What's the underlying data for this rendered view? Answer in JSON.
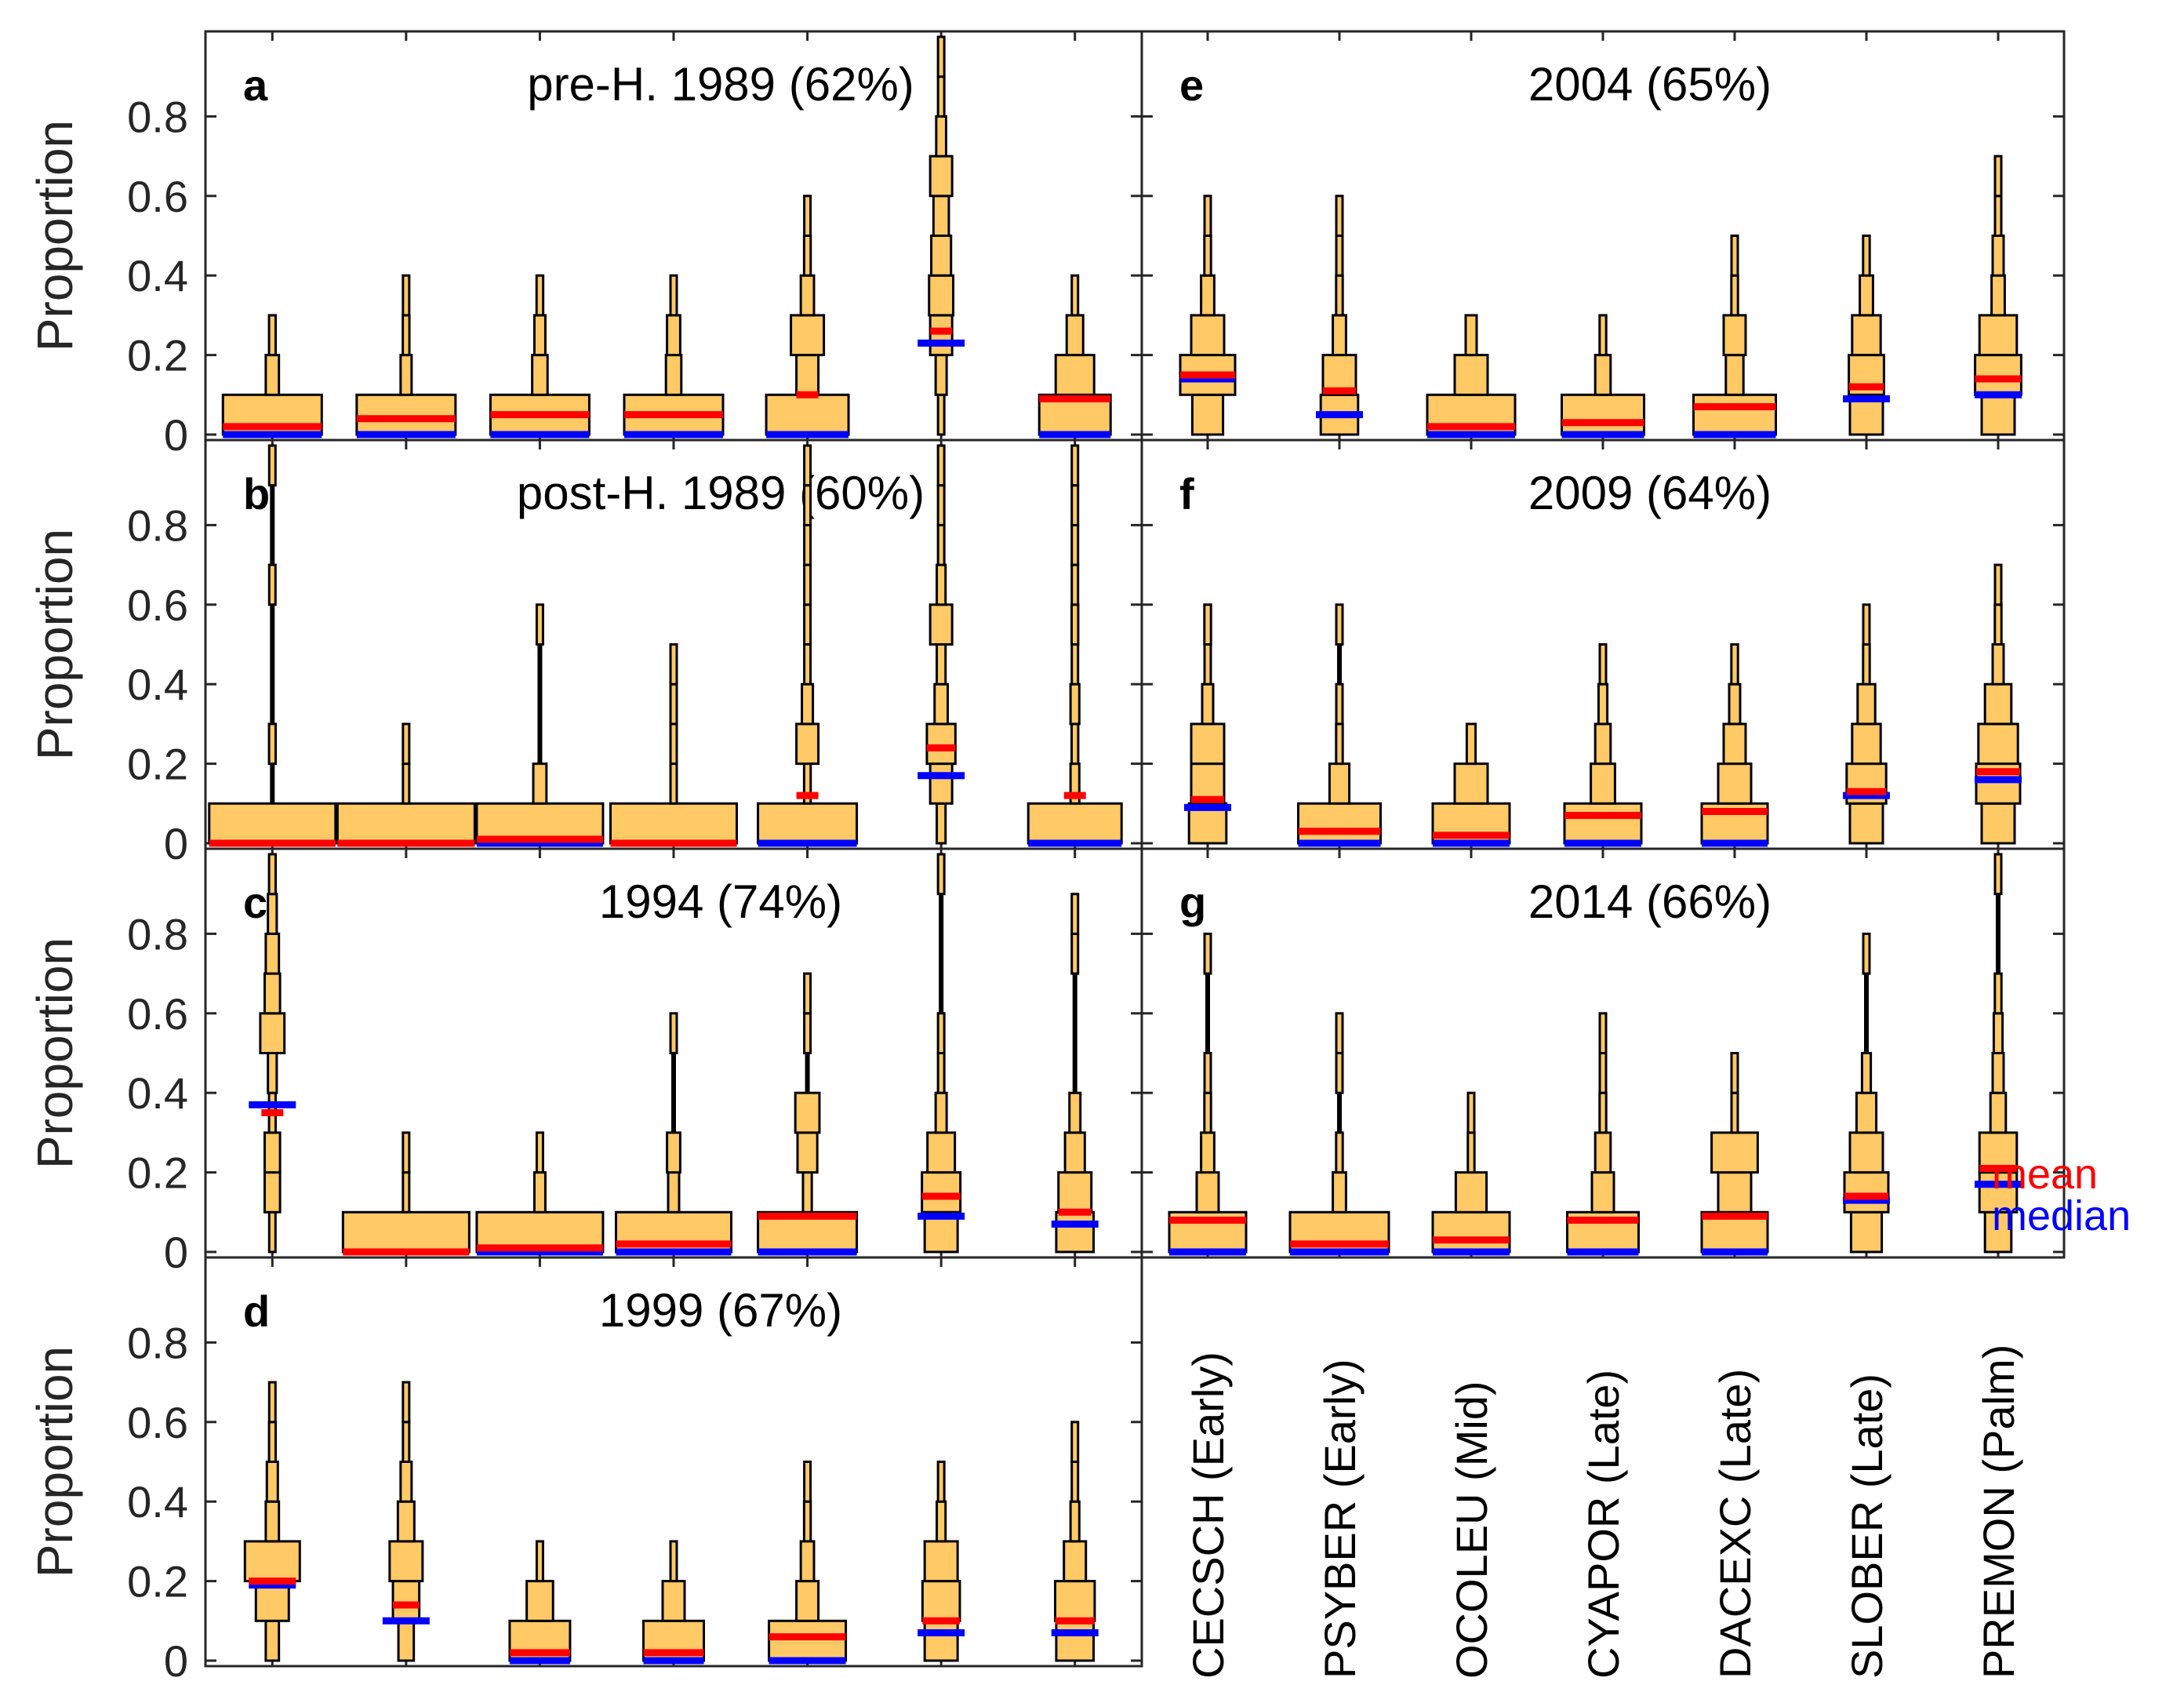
{
  "chart_data": {
    "type": "violin-histogram",
    "ylabel": "Proportion",
    "ylim": [
      0,
      1
    ],
    "yticks": [
      0,
      0.2,
      0.4,
      0.6,
      0.8
    ],
    "ytick_labels": [
      "0",
      "0.2",
      "0.4",
      "0.6",
      "0.8"
    ],
    "categories": [
      "CECSCH (Early)",
      "PSYBER (Early)",
      "OCOLEU (Mid)",
      "CYAPOR (Late)",
      "DACEXC (Late)",
      "SLOBER (Late)",
      "PREMON (Palm)"
    ],
    "legend": [
      {
        "label": "mean",
        "color": "#ff0000"
      },
      {
        "label": "median",
        "color": "#0000ff"
      }
    ],
    "colors": {
      "fill": "#ffc966",
      "mean": "#ff0000",
      "median": "#0000ff",
      "outline": "#000000"
    },
    "bins": [
      0,
      0.1,
      0.2,
      0.3,
      0.4,
      0.5,
      0.6,
      0.7,
      0.8,
      0.9
    ],
    "panels": [
      {
        "letter": "a",
        "title": "pre-H. 1989 (62%)",
        "series": [
          {
            "widths": [
              0.9,
              0.12,
              0.06,
              0,
              0,
              0,
              0,
              0,
              0,
              0
            ],
            "mean": 0.02,
            "median": 0
          },
          {
            "widths": [
              0.9,
              0.1,
              0.06,
              0.03,
              0,
              0,
              0,
              0,
              0,
              0
            ],
            "mean": 0.04,
            "median": 0
          },
          {
            "widths": [
              0.9,
              0.14,
              0.1,
              0.06,
              0,
              0,
              0,
              0,
              0,
              0
            ],
            "mean": 0.05,
            "median": 0
          },
          {
            "widths": [
              0.9,
              0.14,
              0.12,
              0.05,
              0,
              0,
              0,
              0,
              0,
              0
            ],
            "mean": 0.05,
            "median": 0
          },
          {
            "widths": [
              0.75,
              0.2,
              0.3,
              0.12,
              0.06,
              0.05,
              0,
              0,
              0,
              0
            ],
            "mean": 0.1,
            "median": 0
          },
          {
            "widths": [
              0.05,
              0.1,
              0.2,
              0.22,
              0.18,
              0.14,
              0.2,
              0.09,
              0.05,
              0.04
            ],
            "mean": 0.26,
            "median": 0.23
          },
          {
            "widths": [
              0.65,
              0.35,
              0.15,
              0.05,
              0,
              0,
              0,
              0,
              0,
              0
            ],
            "mean": 0.09,
            "median": 0
          }
        ]
      },
      {
        "letter": "b",
        "title": "post-H. 1989 (60%)",
        "series": [
          {
            "widths": [
              1.15,
              0,
              0.06,
              0,
              0,
              0,
              0.04,
              0,
              0,
              0.02
            ],
            "mean": 0,
            "median": 0
          },
          {
            "widths": [
              1.25,
              0.04,
              0.04,
              0,
              0,
              0,
              0,
              0,
              0,
              0
            ],
            "mean": 0,
            "median": 0
          },
          {
            "widths": [
              1.15,
              0.12,
              0,
              0,
              0,
              0.04,
              0,
              0,
              0,
              0
            ],
            "mean": 0.01,
            "median": 0
          },
          {
            "widths": [
              1.15,
              0.04,
              0.03,
              0.03,
              0.03,
              0,
              0,
              0,
              0,
              0
            ],
            "mean": 0,
            "median": 0
          },
          {
            "widths": [
              0.9,
              0.06,
              0.2,
              0.1,
              0.05,
              0.04,
              0.04,
              0.04,
              0.02,
              0.02
            ],
            "mean": 0.12,
            "median": 0
          },
          {
            "widths": [
              0.08,
              0.2,
              0.26,
              0.12,
              0.08,
              0.2,
              0.08,
              0.04,
              0.04,
              0.04
            ],
            "mean": 0.24,
            "median": 0.17
          },
          {
            "widths": [
              0.85,
              0.08,
              0.06,
              0.08,
              0.04,
              0.06,
              0.04,
              0.04,
              0.02,
              0.03
            ],
            "mean": 0.12,
            "median": 0
          }
        ]
      },
      {
        "letter": "c",
        "title": "1994 (74%)",
        "series": [
          {
            "widths": [
              0.04,
              0.14,
              0.14,
              0.06,
              0.08,
              0.22,
              0.14,
              0.12,
              0.08,
              0.06
            ],
            "mean": 0.35,
            "median": 0.37
          },
          {
            "widths": [
              1.15,
              0.04,
              0.04,
              0,
              0,
              0,
              0,
              0,
              0,
              0
            ],
            "mean": 0,
            "median": 0
          },
          {
            "widths": [
              1.15,
              0.1,
              0.05,
              0,
              0,
              0,
              0,
              0,
              0,
              0
            ],
            "mean": 0.01,
            "median": 0
          },
          {
            "widths": [
              1.05,
              0.1,
              0.12,
              0,
              0,
              0.03,
              0,
              0,
              0,
              0
            ],
            "mean": 0.02,
            "median": 0
          },
          {
            "widths": [
              0.9,
              0.08,
              0.18,
              0.22,
              0,
              0.05,
              0.05,
              0,
              0,
              0
            ],
            "mean": 0.09,
            "median": 0
          },
          {
            "widths": [
              0.3,
              0.35,
              0.25,
              0.1,
              0.05,
              0.05,
              0,
              0,
              0,
              0.02
            ],
            "mean": 0.14,
            "median": 0.09
          },
          {
            "widths": [
              0.34,
              0.3,
              0.18,
              0.1,
              0,
              0,
              0,
              0.04,
              0.02,
              0
            ],
            "mean": 0.1,
            "median": 0.07
          }
        ]
      },
      {
        "letter": "d",
        "title": "1999 (67%)",
        "series": [
          {
            "widths": [
              0.12,
              0.3,
              0.5,
              0.12,
              0.1,
              0.06,
              0.04,
              0,
              0,
              0
            ],
            "mean": 0.2,
            "median": 0.19
          },
          {
            "widths": [
              0.14,
              0.24,
              0.3,
              0.15,
              0.1,
              0.05,
              0.04,
              0,
              0,
              0
            ],
            "mean": 0.14,
            "median": 0.1
          },
          {
            "widths": [
              0.55,
              0.24,
              0.05,
              0,
              0,
              0,
              0,
              0,
              0,
              0
            ],
            "mean": 0.02,
            "median": 0
          },
          {
            "widths": [
              0.55,
              0.2,
              0.05,
              0,
              0,
              0,
              0,
              0,
              0,
              0
            ],
            "mean": 0.02,
            "median": 0
          },
          {
            "widths": [
              0.7,
              0.2,
              0.12,
              0.06,
              0.04,
              0,
              0,
              0,
              0,
              0
            ],
            "mean": 0.06,
            "median": 0
          },
          {
            "widths": [
              0.3,
              0.34,
              0.3,
              0.08,
              0.04,
              0,
              0,
              0,
              0,
              0
            ],
            "mean": 0.1,
            "median": 0.07
          },
          {
            "widths": [
              0.34,
              0.36,
              0.2,
              0.08,
              0.04,
              0.04,
              0,
              0,
              0,
              0
            ],
            "mean": 0.1,
            "median": 0.07
          }
        ]
      },
      {
        "letter": "e",
        "title": "2004 (65%)",
        "series": [
          {
            "widths": [
              0.28,
              0.5,
              0.3,
              0.12,
              0.06,
              0.04,
              0,
              0,
              0,
              0
            ],
            "mean": 0.15,
            "median": 0.14
          },
          {
            "widths": [
              0.34,
              0.3,
              0.12,
              0.06,
              0.04,
              0.04,
              0,
              0,
              0,
              0
            ],
            "mean": 0.11,
            "median": 0.05
          },
          {
            "widths": [
              0.8,
              0.3,
              0.1,
              0,
              0,
              0,
              0,
              0,
              0,
              0
            ],
            "mean": 0.02,
            "median": 0
          },
          {
            "widths": [
              0.75,
              0.14,
              0.06,
              0,
              0,
              0,
              0,
              0,
              0,
              0
            ],
            "mean": 0.03,
            "median": 0
          },
          {
            "widths": [
              0.75,
              0.16,
              0.2,
              0.06,
              0.04,
              0,
              0,
              0,
              0,
              0
            ],
            "mean": 0.07,
            "median": 0
          },
          {
            "widths": [
              0.3,
              0.32,
              0.26,
              0.12,
              0.06,
              0,
              0,
              0,
              0,
              0
            ],
            "mean": 0.12,
            "median": 0.09
          },
          {
            "widths": [
              0.3,
              0.42,
              0.34,
              0.12,
              0.1,
              0.04,
              0.04,
              0,
              0,
              0
            ],
            "mean": 0.14,
            "median": 0.1
          }
        ]
      },
      {
        "letter": "f",
        "title": "2009 (64%)",
        "series": [
          {
            "widths": [
              0.34,
              0.3,
              0.3,
              0.1,
              0.04,
              0.06,
              0,
              0,
              0,
              0
            ],
            "mean": 0.11,
            "median": 0.09
          },
          {
            "widths": [
              0.75,
              0.18,
              0.06,
              0.04,
              0,
              0.04,
              0,
              0,
              0,
              0
            ],
            "mean": 0.03,
            "median": 0
          },
          {
            "widths": [
              0.7,
              0.3,
              0.08,
              0,
              0,
              0,
              0,
              0,
              0,
              0
            ],
            "mean": 0.02,
            "median": 0
          },
          {
            "widths": [
              0.7,
              0.22,
              0.14,
              0.08,
              0.04,
              0,
              0,
              0,
              0,
              0
            ],
            "mean": 0.07,
            "median": 0
          },
          {
            "widths": [
              0.6,
              0.3,
              0.2,
              0.1,
              0.06,
              0,
              0,
              0,
              0,
              0
            ],
            "mean": 0.08,
            "median": 0
          },
          {
            "widths": [
              0.3,
              0.36,
              0.26,
              0.16,
              0.06,
              0.04,
              0,
              0,
              0,
              0
            ],
            "mean": 0.13,
            "median": 0.12
          },
          {
            "widths": [
              0.3,
              0.4,
              0.36,
              0.24,
              0.1,
              0.06,
              0.04,
              0,
              0,
              0
            ],
            "mean": 0.18,
            "median": 0.16
          }
        ]
      },
      {
        "letter": "g",
        "title": "2014 (66%)",
        "series": [
          {
            "widths": [
              0.7,
              0.2,
              0.12,
              0.06,
              0.04,
              0,
              0,
              0.03,
              0,
              0
            ],
            "mean": 0.08,
            "median": 0
          },
          {
            "widths": [
              0.9,
              0.12,
              0.06,
              0,
              0.04,
              0.04,
              0,
              0,
              0,
              0
            ],
            "mean": 0.02,
            "median": 0
          },
          {
            "widths": [
              0.7,
              0.28,
              0.06,
              0.03,
              0,
              0,
              0,
              0,
              0,
              0
            ],
            "mean": 0.03,
            "median": 0
          },
          {
            "widths": [
              0.65,
              0.2,
              0.14,
              0.06,
              0.04,
              0.03,
              0,
              0,
              0,
              0
            ],
            "mean": 0.08,
            "median": 0
          },
          {
            "widths": [
              0.6,
              0.3,
              0.42,
              0.05,
              0.03,
              0,
              0,
              0,
              0,
              0
            ],
            "mean": 0.09,
            "median": 0
          },
          {
            "widths": [
              0.28,
              0.4,
              0.3,
              0.18,
              0.08,
              0,
              0,
              0.03,
              0,
              0
            ],
            "mean": 0.14,
            "median": 0.13
          },
          {
            "widths": [
              0.24,
              0.34,
              0.34,
              0.14,
              0.1,
              0.08,
              0.06,
              0,
              0,
              0.03
            ],
            "mean": 0.21,
            "median": 0.17
          }
        ]
      }
    ]
  }
}
